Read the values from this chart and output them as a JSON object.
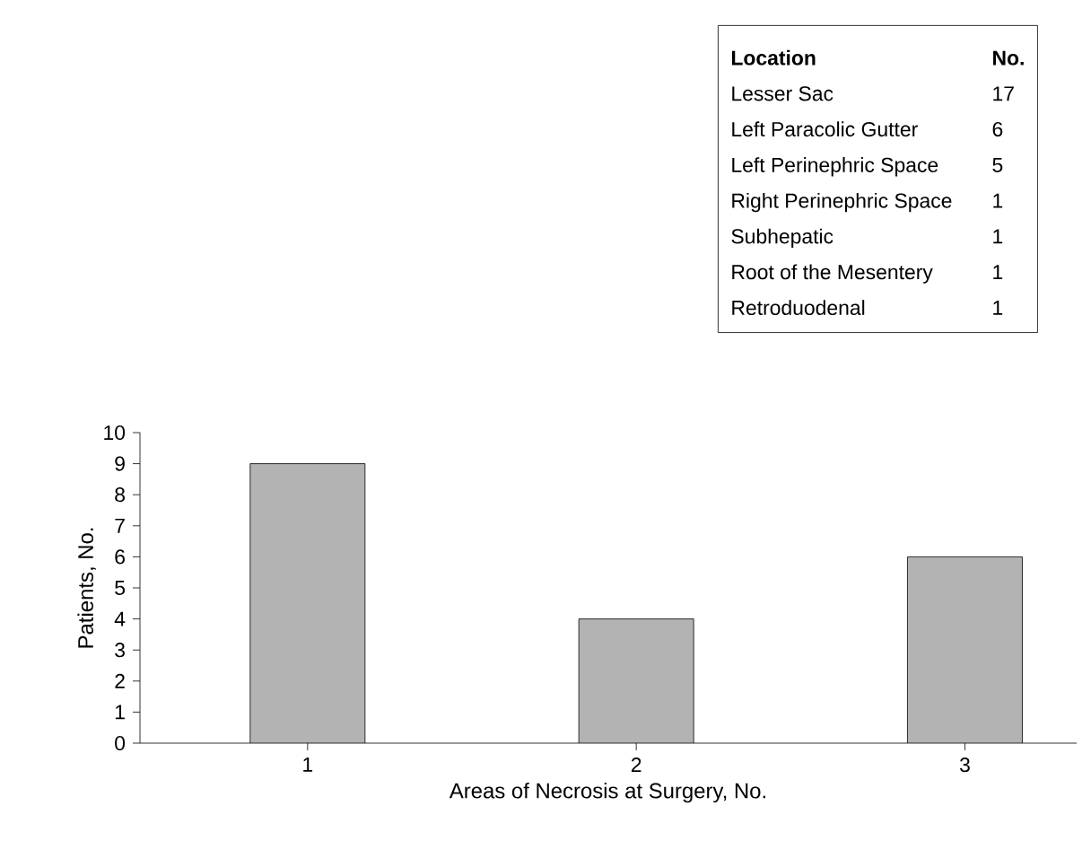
{
  "chart_data": {
    "type": "bar",
    "xlabel": "Areas of Necrosis at Surgery, No.",
    "ylabel": "Patients, No.",
    "categories": [
      "1",
      "2",
      "3"
    ],
    "values": [
      9,
      4,
      6
    ],
    "color": "#b3b3b3",
    "ylim": [
      0,
      10
    ],
    "yticks": [
      0,
      1,
      2,
      3,
      4,
      5,
      6,
      7,
      8,
      9,
      10
    ],
    "annotations": [
      "**Location**",
      "**No.**",
      "Lesser Sac",
      "17",
      "Left Paracolic Gutter",
      "6",
      "Left Perinephric Space",
      "5",
      "Right Perinephric Space",
      "1",
      "Subhepatic",
      "1",
      "Root of the Mesentery",
      "1",
      "Retroduodenal",
      "1"
    ]
  }
}
